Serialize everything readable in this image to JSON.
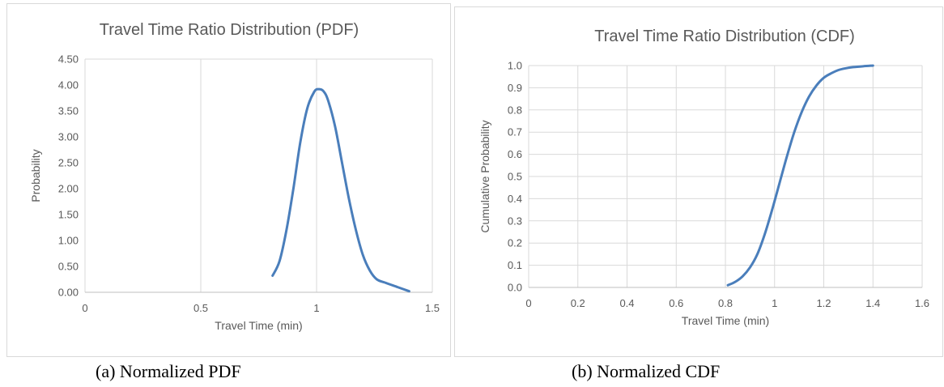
{
  "captions": {
    "pdf": "(a)  Normalized PDF",
    "cdf": "(b) Normalized CDF"
  },
  "chart_data": [
    {
      "id": "pdf",
      "type": "line",
      "title": "Travel Time Ratio Distribution (PDF)",
      "xlabel": "Travel Time (min)",
      "ylabel": "Probability",
      "xlim": [
        0,
        1.5
      ],
      "ylim": [
        0,
        4.5
      ],
      "xticks": [
        "0",
        "0.5",
        "1",
        "1.5"
      ],
      "xtick_values": [
        0,
        0.5,
        1,
        1.5
      ],
      "yticks": [
        "0.00",
        "0.50",
        "1.00",
        "1.50",
        "2.00",
        "2.50",
        "3.00",
        "3.50",
        "4.00",
        "4.50"
      ],
      "ytick_values": [
        0,
        0.5,
        1,
        1.5,
        2,
        2.5,
        3,
        3.5,
        4,
        4.5
      ],
      "grid": "vertical",
      "line_color": "#4a7ebb",
      "series": [
        {
          "x": [
            0.81,
            0.84,
            0.87,
            0.9,
            0.93,
            0.96,
            0.99,
            1.01,
            1.03,
            1.05,
            1.08,
            1.11,
            1.14,
            1.17,
            1.2,
            1.23,
            1.26,
            1.3,
            1.35,
            1.4
          ],
          "values": [
            0.32,
            0.6,
            1.2,
            2.0,
            2.9,
            3.55,
            3.87,
            3.92,
            3.88,
            3.7,
            3.2,
            2.5,
            1.8,
            1.2,
            0.72,
            0.42,
            0.25,
            0.18,
            0.1,
            0.02
          ]
        }
      ]
    },
    {
      "id": "cdf",
      "type": "line",
      "title": "Travel Time Ratio Distribution (CDF)",
      "xlabel": "Travel Time (min)",
      "ylabel": "Cumulative Probability",
      "xlim": [
        0,
        1.6
      ],
      "ylim": [
        0,
        1.0
      ],
      "xticks": [
        "0",
        "0.2",
        "0.4",
        "0.6",
        "0.8",
        "1",
        "1.2",
        "1.4",
        "1.6"
      ],
      "xtick_values": [
        0,
        0.2,
        0.4,
        0.6,
        0.8,
        1.0,
        1.2,
        1.4,
        1.6
      ],
      "yticks": [
        "0.0",
        "0.1",
        "0.2",
        "0.3",
        "0.4",
        "0.5",
        "0.6",
        "0.7",
        "0.8",
        "0.9",
        "1.0"
      ],
      "ytick_values": [
        0,
        0.1,
        0.2,
        0.3,
        0.4,
        0.5,
        0.6,
        0.7,
        0.8,
        0.9,
        1.0
      ],
      "grid": "both",
      "line_color": "#4a7ebb",
      "series": [
        {
          "x": [
            0.81,
            0.84,
            0.87,
            0.9,
            0.93,
            0.96,
            0.99,
            1.02,
            1.05,
            1.08,
            1.11,
            1.14,
            1.17,
            1.2,
            1.23,
            1.26,
            1.29,
            1.32,
            1.36,
            1.4
          ],
          "values": [
            0.01,
            0.025,
            0.05,
            0.09,
            0.15,
            0.24,
            0.35,
            0.47,
            0.59,
            0.7,
            0.79,
            0.86,
            0.91,
            0.945,
            0.965,
            0.98,
            0.988,
            0.993,
            0.997,
            1.0
          ]
        }
      ]
    }
  ]
}
